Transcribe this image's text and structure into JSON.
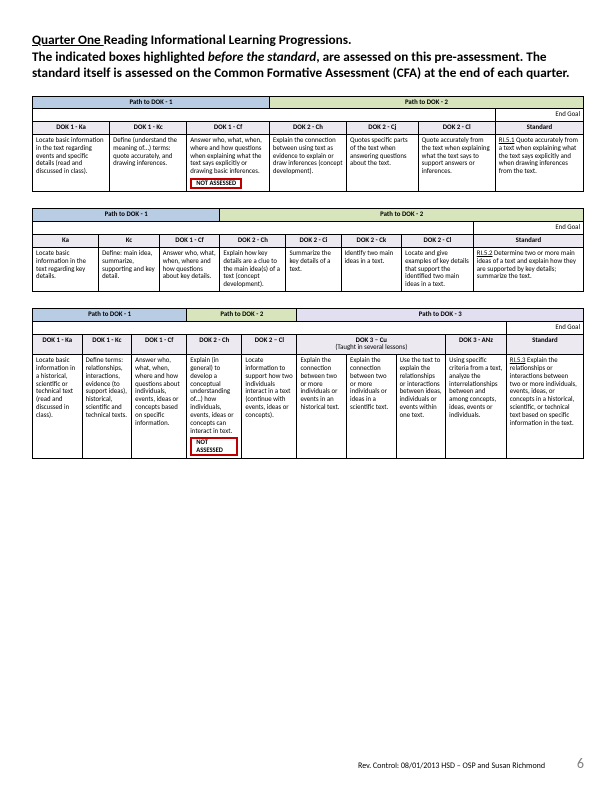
{
  "intro": {
    "line1_pre": "Quarter One ",
    "line1_post": "Reading Informational Learning Progressions.",
    "rest": "The indicated boxes highlighted <span class='bi'>before the standard</span>, are assessed on this pre-assessment. The standard itself is assessed on the Common Formative Assessment (CFA) at the end of each quarter."
  },
  "colors": {
    "path1": "#b8cce4",
    "path2": "#d7e4bc",
    "path3": "#e2dff0",
    "colhdr": "#eceaf0",
    "notassessed_border": "#c00000"
  },
  "table1": {
    "paths": [
      "Path to DOK - 1",
      "Path to DOK - 2"
    ],
    "endgoal": "End Goal",
    "cols": [
      "DOK 1 - Ka",
      "DOK 1 - Kc",
      "DOK 1 - Cf",
      "DOK 2 - Ch",
      "DOK 2 - Cj",
      "DOK 2 - Cl",
      "Standard"
    ],
    "cells": [
      "Locate basic information in the text regarding events and specific details (read and discussed in class).",
      "Define (understand the meaning of…) terms: quote accurately, and drawing inferences.",
      "Answer who, what, when, where and how questions when explaining what the text says explicitly or drawing basic inferences.",
      "Explain the connection between using text as evidence to explain or draw inferences (concept development).",
      "Quotes specific parts of the text when answering questions about the text.",
      "Quote accurately from the text when explaining what the text says to support answers or inferences.",
      "<span class='ub'>RI.5.1</span> Quote accurately from a text when explaining what the text says explicitly and when drawing inferences from the text."
    ],
    "notassessed": "NOT ASSESSED"
  },
  "table2": {
    "paths": [
      "Path to DOK - 1",
      "Path to DOK - 2"
    ],
    "endgoal": "End Goal",
    "cols": [
      "Ka",
      "Kc",
      "DOK 1 - Cf",
      "DOK 2 - Ch",
      "DOK 2 - Ci",
      "DOK 2 - Ck",
      "DOK 2 - Cl",
      "Standard"
    ],
    "cells": [
      "Locate basic information in the text regarding key details.",
      "Define: main idea, summarize, supporting and key detail.",
      "Answer who, what, when, where and how questions about key details.",
      "Explain how key details are a clue to the main idea(s) of a text (concept development).",
      "Summarize the key details of a text.",
      "Identify two main ideas in a text.",
      "Locate and give examples of key details that support the identified two main ideas in a text.",
      "<span class='ub'>RI.5.2</span> Determine two or more main ideas of a text and explain how they are supported by key details; summarize the text."
    ]
  },
  "table3": {
    "paths": [
      "Path to DOK - 1",
      "Path to DOK - 2",
      "Path to DOK - 3"
    ],
    "endgoal": "End Goal",
    "cols_top": [
      "DOK 1 - Ka",
      "DOK 1 - Kc",
      "DOK 1 - Cf",
      "DOK 2 - Ch",
      "DOK 2 – Cl",
      "DOK 3 – Cu",
      "DOK 3 - ANz",
      "Standard"
    ],
    "taught": "(Taught in several lessons)",
    "cells": [
      "Locate basic information in a historical, scientific or technical text (read and discussed in class).",
      "Define terms: relationships, interactions, evidence (to support ideas), historical, scientific and technical texts.",
      "Answer who, what, when, where and how questions about individuals, events, ideas or concepts based on specific information.",
      "Explain (in general) to develop a conceptual understanding of…) how individuals, events, ideas or concepts can interact in text.",
      "Locate information to support how two individuals interact in a text (continue with events, ideas or concepts).",
      "Explain the connection between two or more individuals or events in an historical text.",
      "Explain the connection between two or more individuals or ideas in a scientific text.",
      "Use the text to explain the relationships or interactions between ideas, individuals or events within one text.",
      "Using specific criteria from a text, analyze the interrelationships between and among concepts, ideas, events or individuals.",
      "<span class='ub'>RI.5.3</span> Explain the relationships or interactions between two or more individuals, events, ideas, or concepts in a historical, scientific, or technical text based on specific information in the text."
    ],
    "notassessed": "NOT ASSESSED"
  },
  "footer": {
    "text": "Rev. Control: 08/01/2013 HSD – OSP and Susan Richmond",
    "page": "6"
  }
}
